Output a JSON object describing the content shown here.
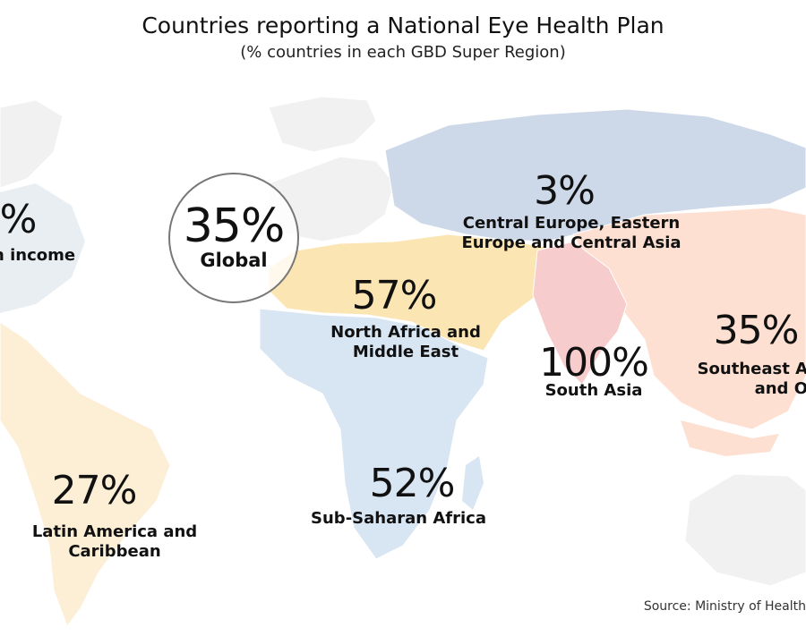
{
  "title": "Countries reporting a National Eye Health Plan",
  "subtitle": "(% countries in each GBD Super Region)",
  "global": {
    "value": "35%",
    "label": "Global"
  },
  "regions": [
    {
      "value": "%",
      "label": "h income",
      "color": "#e9eef3"
    },
    {
      "value": "3%",
      "label": "Central Europe, Eastern Europe and Central Asia",
      "color": "#cdd9e8"
    },
    {
      "value": "57%",
      "label": "North Africa and Middle East",
      "color": "#fbe5b3"
    },
    {
      "value": "100%",
      "label": "South Asia",
      "color": "#f6cccc"
    },
    {
      "value": "35%",
      "label": "Southeast A and O",
      "color": "#fde0d1"
    },
    {
      "value": "52%",
      "label": "Sub-Saharan Africa",
      "color": "#d8e6f3"
    },
    {
      "value": "27%",
      "label": "Latin America and Caribbean",
      "color": "#fcefd6"
    }
  ],
  "source": "Source: Ministry of Health"
}
